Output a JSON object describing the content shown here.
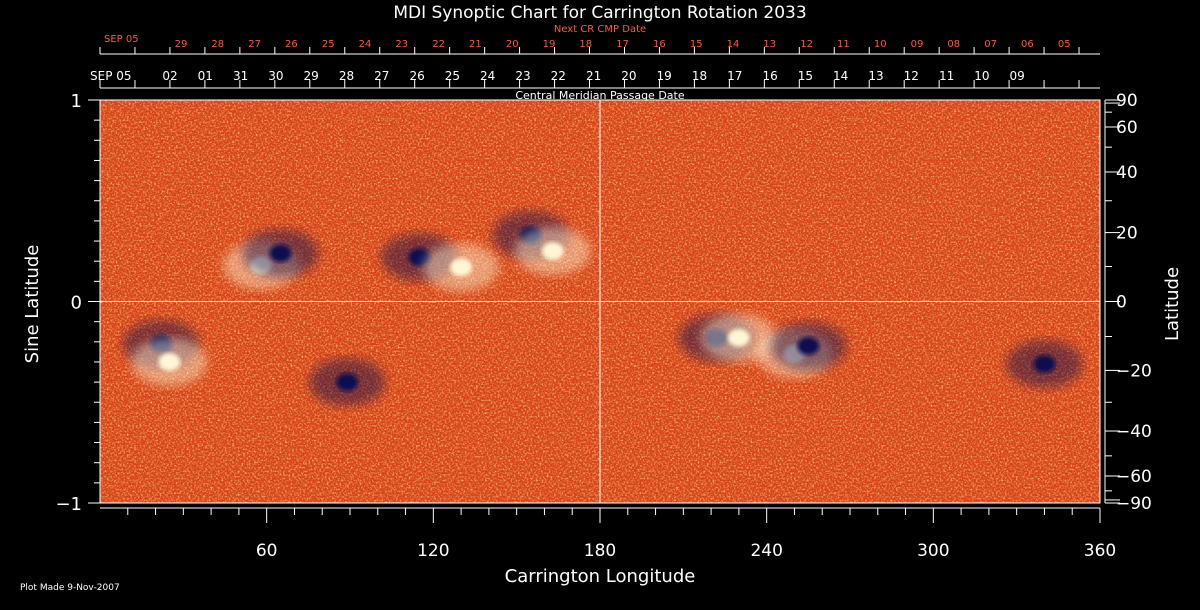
{
  "chart_data": {
    "type": "heatmap",
    "title": "MDI Synoptic Chart for Carrington Rotation 2033",
    "xlabel": "Carrington Longitude",
    "ylabel_left": "Sine Latitude",
    "ylabel_right": "Latitude",
    "xlim": [
      0,
      360
    ],
    "ylim": [
      -1,
      1
    ],
    "x_ticks": [
      60,
      120,
      180,
      240,
      300,
      360
    ],
    "y_ticks_left": [
      1,
      0,
      -1
    ],
    "y_tick_labels_left": [
      "1",
      "0",
      "−1"
    ],
    "y_ticks_right_deg": [
      90,
      60,
      40,
      20,
      0,
      -20,
      -40,
      -60,
      -90
    ],
    "y_tick_labels_right": [
      "90",
      "60",
      "40",
      "20",
      "0",
      "−20",
      "−40",
      "−60",
      "−90"
    ],
    "top_axis_label": "Central Meridian Passage Date",
    "top_axis_start_label": "SEP 05",
    "top_axis_dates": [
      "02",
      "01",
      "31",
      "30",
      "29",
      "28",
      "27",
      "26",
      "25",
      "24",
      "23",
      "22",
      "21",
      "20",
      "19",
      "18",
      "17",
      "16",
      "15",
      "14",
      "13",
      "12",
      "11",
      "10",
      "09"
    ],
    "next_axis_label": "Next CR CMP Date",
    "next_axis_start_label": "SEP 05",
    "next_axis_dates": [
      "29",
      "28",
      "27",
      "26",
      "25",
      "24",
      "23",
      "22",
      "21",
      "20",
      "19",
      "18",
      "17",
      "16",
      "15",
      "14",
      "13",
      "12",
      "11",
      "10",
      "09",
      "08",
      "07",
      "06",
      "05"
    ],
    "crosshair": {
      "longitude": 180,
      "sine_latitude": 0
    },
    "regions": [
      {
        "lon": 58,
        "sinlat": 0.18,
        "polarity": "positive"
      },
      {
        "lon": 65,
        "sinlat": 0.24,
        "polarity": "negative"
      },
      {
        "lon": 115,
        "sinlat": 0.22,
        "polarity": "negative"
      },
      {
        "lon": 130,
        "sinlat": 0.17,
        "polarity": "positive"
      },
      {
        "lon": 155,
        "sinlat": 0.33,
        "polarity": "negative"
      },
      {
        "lon": 163,
        "sinlat": 0.25,
        "polarity": "positive"
      },
      {
        "lon": 22,
        "sinlat": -0.21,
        "polarity": "negative"
      },
      {
        "lon": 25,
        "sinlat": -0.3,
        "polarity": "positive"
      },
      {
        "lon": 89,
        "sinlat": -0.4,
        "polarity": "negative"
      },
      {
        "lon": 222,
        "sinlat": -0.18,
        "polarity": "negative"
      },
      {
        "lon": 230,
        "sinlat": -0.18,
        "polarity": "positive"
      },
      {
        "lon": 250,
        "sinlat": -0.26,
        "polarity": "positive"
      },
      {
        "lon": 255,
        "sinlat": -0.22,
        "polarity": "negative"
      },
      {
        "lon": 340,
        "sinlat": -0.31,
        "polarity": "negative"
      }
    ],
    "colors": {
      "background": "#000000",
      "field_base": "#e0481b",
      "positive": "#fff6d6",
      "negative": "#0a1050",
      "axis": "#ffffff",
      "next_axis_text": "#ff5a3c"
    }
  },
  "footer": {
    "plot_made": "Plot Made  9-Nov-2007"
  }
}
